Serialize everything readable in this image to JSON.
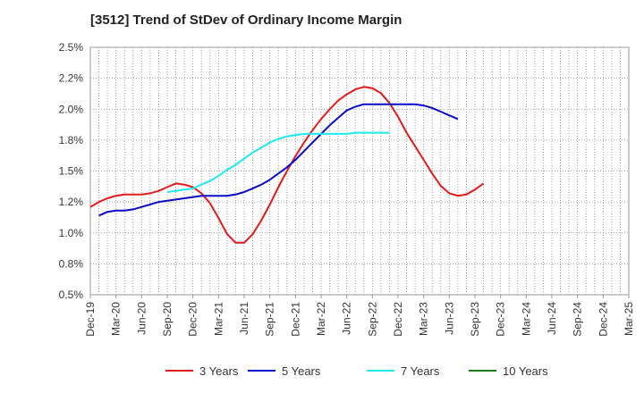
{
  "chart_data": {
    "type": "line",
    "title": "[3512]  Trend of StDev of Ordinary Income Margin",
    "xlabel": "",
    "ylabel": "",
    "x_ticks": [
      "Dec-19",
      "Mar-20",
      "Jun-20",
      "Sep-20",
      "Dec-20",
      "Mar-21",
      "Jun-21",
      "Sep-21",
      "Dec-21",
      "Mar-22",
      "Jun-22",
      "Sep-22",
      "Dec-22",
      "Mar-23",
      "Jun-23",
      "Sep-23",
      "Dec-23",
      "Mar-24",
      "Jun-24",
      "Sep-24",
      "Dec-24",
      "Mar-25"
    ],
    "y_ticks": [
      "0.5%",
      "0.8%",
      "1.0%",
      "1.2%",
      "1.5%",
      "1.8%",
      "2.0%",
      "2.2%",
      "2.5%"
    ],
    "ylim": [
      0.5,
      2.5
    ],
    "grid": true,
    "legend_position": "bottom",
    "series": [
      {
        "name": "3 Years",
        "color": "#e31a1c",
        "start_index": 0,
        "values": [
          1.21,
          1.25,
          1.28,
          1.3,
          1.31,
          1.31,
          1.31,
          1.32,
          1.34,
          1.37,
          1.4,
          1.39,
          1.37,
          1.32,
          1.24,
          1.12,
          0.99,
          0.92,
          0.92,
          0.99,
          1.1,
          1.23,
          1.37,
          1.5,
          1.62,
          1.73,
          1.83,
          1.92,
          2.0,
          2.07,
          2.12,
          2.16,
          2.18,
          2.17,
          2.13,
          2.05,
          1.94,
          1.81,
          1.7,
          1.59,
          1.48,
          1.38,
          1.32,
          1.3,
          1.31,
          1.35,
          1.4
        ]
      },
      {
        "name": "5 Years",
        "color": "#0a0ac8",
        "start_index": 1,
        "values": [
          1.14,
          1.17,
          1.18,
          1.18,
          1.19,
          1.21,
          1.23,
          1.25,
          1.26,
          1.27,
          1.28,
          1.29,
          1.3,
          1.3,
          1.3,
          1.3,
          1.31,
          1.33,
          1.36,
          1.39,
          1.43,
          1.48,
          1.53,
          1.59,
          1.66,
          1.73,
          1.8,
          1.87,
          1.93,
          1.99,
          2.02,
          2.04,
          2.04,
          2.04,
          2.04,
          2.04,
          2.04,
          2.04,
          2.03,
          2.01,
          1.98,
          1.95,
          1.92
        ]
      },
      {
        "name": "7 Years",
        "color": "#1ee8f0",
        "start_index": 9,
        "values": [
          1.33,
          1.34,
          1.35,
          1.36,
          1.39,
          1.42,
          1.46,
          1.51,
          1.55,
          1.6,
          1.65,
          1.69,
          1.73,
          1.76,
          1.78,
          1.79,
          1.8,
          1.8,
          1.8,
          1.8,
          1.8,
          1.8,
          1.81,
          1.81,
          1.81,
          1.81,
          1.81
        ]
      },
      {
        "name": "10 Years",
        "color": "#1a7a1a",
        "start_index": 0,
        "values": []
      }
    ]
  }
}
